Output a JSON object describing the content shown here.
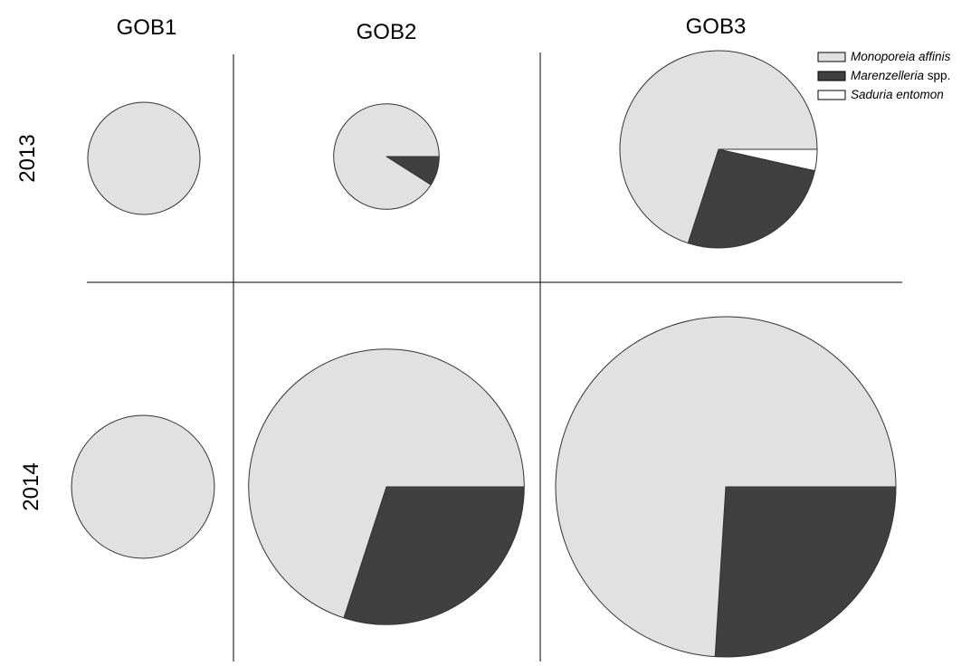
{
  "chart_data": {
    "type": "pie",
    "columns": [
      "GOB1",
      "GOB2",
      "GOB3"
    ],
    "rows": [
      "2013",
      "2014"
    ],
    "legend": {
      "placement": "top-right",
      "entries": [
        {
          "key": "monoporeia",
          "name": "Monoporeia affinis",
          "name_italic": "Monoporeia affinis",
          "name_suffix": "",
          "color": "#e0e1e0"
        },
        {
          "key": "marenzelleria",
          "name": "Marenzelleria spp.",
          "name_italic": "Marenzelleria",
          "name_suffix": " spp.",
          "color": "#404040"
        },
        {
          "key": "saduria",
          "name": "Saduria entomon",
          "name_italic": "Saduria entomon",
          "name_suffix": "",
          "color": "#ffffff"
        }
      ]
    },
    "pies": [
      {
        "column": "GOB1",
        "row": "2013",
        "relative_size": 0.33,
        "slices": [
          {
            "series": "monoporeia",
            "value": 100
          },
          {
            "series": "marenzelleria",
            "value": 0
          },
          {
            "series": "saduria",
            "value": 0
          }
        ]
      },
      {
        "column": "GOB2",
        "row": "2013",
        "relative_size": 0.31,
        "slices": [
          {
            "series": "monoporeia",
            "value": 91
          },
          {
            "series": "marenzelleria",
            "value": 9
          },
          {
            "series": "saduria",
            "value": 0
          }
        ]
      },
      {
        "column": "GOB3",
        "row": "2013",
        "relative_size": 0.58,
        "slices": [
          {
            "series": "monoporeia",
            "value": 70
          },
          {
            "series": "marenzelleria",
            "value": 26.5
          },
          {
            "series": "saduria",
            "value": 3.5
          }
        ]
      },
      {
        "column": "GOB1",
        "row": "2014",
        "relative_size": 0.42,
        "slices": [
          {
            "series": "monoporeia",
            "value": 100
          },
          {
            "series": "marenzelleria",
            "value": 0
          },
          {
            "series": "saduria",
            "value": 0
          }
        ]
      },
      {
        "column": "GOB2",
        "row": "2014",
        "relative_size": 0.81,
        "slices": [
          {
            "series": "monoporeia",
            "value": 70
          },
          {
            "series": "marenzelleria",
            "value": 30
          },
          {
            "series": "saduria",
            "value": 0
          }
        ]
      },
      {
        "column": "GOB3",
        "row": "2014",
        "relative_size": 1.0,
        "slices": [
          {
            "series": "monoporeia",
            "value": 74
          },
          {
            "series": "marenzelleria",
            "value": 26
          },
          {
            "series": "saduria",
            "value": 0
          }
        ]
      }
    ]
  }
}
